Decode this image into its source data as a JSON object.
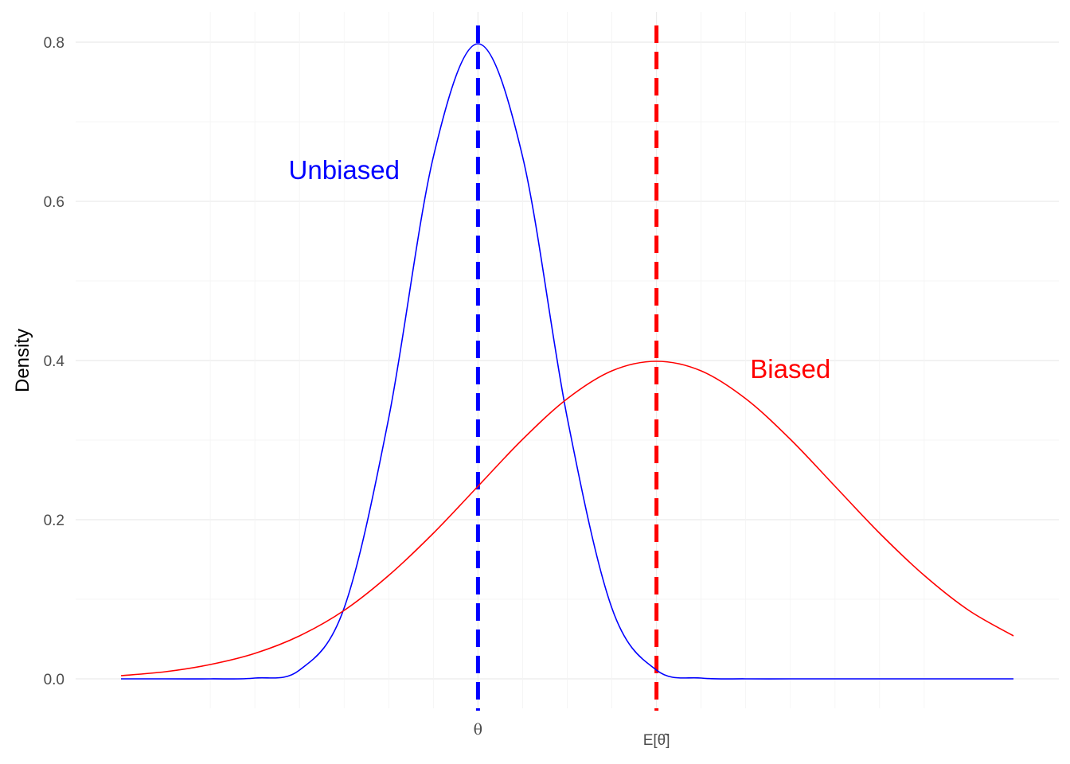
{
  "chart_data": {
    "type": "line",
    "ylabel": "Density",
    "xlabel": "",
    "xlim": [
      -4,
      6
    ],
    "ylim": [
      0,
      0.8
    ],
    "y_ticks": [
      0.0,
      0.2,
      0.4,
      0.6,
      0.8
    ],
    "y_tick_labels": [
      "0.0",
      "0.2",
      "0.4",
      "0.6",
      "0.8"
    ],
    "x_ticks": [
      {
        "x": 0,
        "label": "θ"
      },
      {
        "x": 2,
        "label": "E[θ̂]"
      }
    ],
    "grid": true,
    "series": [
      {
        "color": "#0000ff",
        "x": [
          -4,
          -3.5,
          -3,
          -2.5,
          -2,
          -1.5,
          -1,
          -0.5,
          0,
          0.5,
          1,
          1.5,
          2,
          2.5,
          3,
          3.5,
          4,
          4.5,
          5,
          5.5,
          6
        ],
        "y": [
          0.0,
          0.0,
          0.0,
          0.001,
          0.011,
          0.089,
          0.328,
          0.656,
          0.798,
          0.656,
          0.328,
          0.089,
          0.011,
          0.001,
          0.0,
          0.0,
          0.0,
          0.0,
          0.0,
          0.0,
          0.0
        ]
      },
      {
        "color": "#ff0000",
        "x": [
          -4,
          -3.5,
          -3,
          -2.5,
          -2,
          -1.5,
          -1,
          -0.5,
          0,
          0.5,
          1,
          1.5,
          2,
          2.5,
          3,
          3.5,
          4,
          4.5,
          5,
          5.5,
          6
        ],
        "y": [
          0.004,
          0.009,
          0.018,
          0.032,
          0.054,
          0.086,
          0.13,
          0.183,
          0.242,
          0.301,
          0.352,
          0.387,
          0.399,
          0.387,
          0.352,
          0.301,
          0.242,
          0.183,
          0.13,
          0.086,
          0.054
        ]
      }
    ],
    "vlines": [
      {
        "x": 0,
        "color": "#0000ff",
        "style": "dashed"
      },
      {
        "x": 2,
        "color": "#ff0000",
        "style": "dashed"
      }
    ],
    "annotations": [
      {
        "text": "Unbiased",
        "x": -1.5,
        "y": 0.64,
        "color": "#0000ff"
      },
      {
        "text": "Biased",
        "x": 3.5,
        "y": 0.39,
        "color": "#ff0000"
      }
    ]
  }
}
